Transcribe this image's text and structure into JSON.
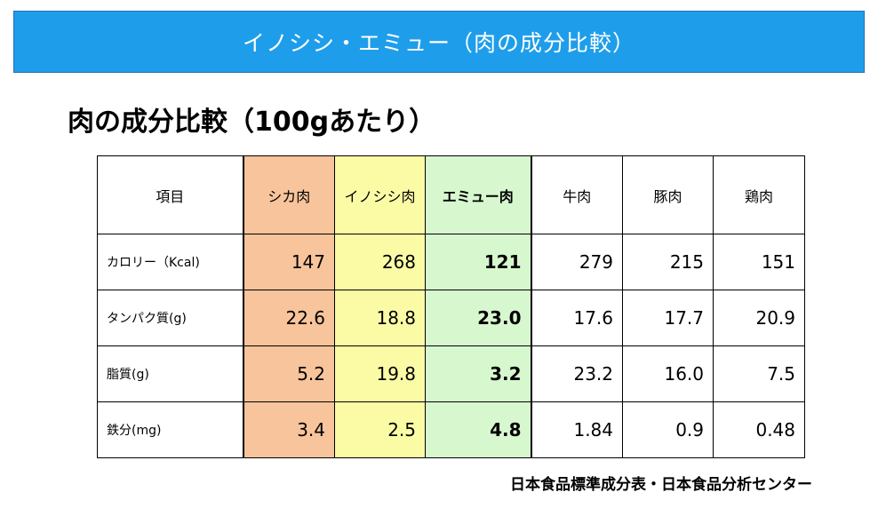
{
  "banner": {
    "title": "イノシシ・エミュー（肉の成分比較）"
  },
  "heading": "肉の成分比較（100gあたり）",
  "table": {
    "columns": [
      "項目",
      "シカ肉",
      "イノシシ肉",
      "エミュー肉",
      "牛肉",
      "豚肉",
      "鶏肉"
    ],
    "rows": [
      {
        "label": "カロリー（Kcal)",
        "values": [
          "147",
          "268",
          "121",
          "279",
          "215",
          "151"
        ]
      },
      {
        "label": "タンパク質(g)",
        "values": [
          "22.6",
          "18.8",
          "23.0",
          "17.6",
          "17.7",
          "20.9"
        ]
      },
      {
        "label": "脂質(g)",
        "values": [
          "5.2",
          "19.8",
          "3.2",
          "23.2",
          "16.0",
          "7.5"
        ]
      },
      {
        "label": "鉄分(mg)",
        "values": [
          "3.4",
          "2.5",
          "4.8",
          "1.84",
          "0.9",
          "0.48"
        ]
      }
    ],
    "highlight_colors": {
      "shika": "#f7c49b",
      "inoshishi": "#fbfba6",
      "emu": "#d7f7cf"
    }
  },
  "source": "日本食品標準成分表・日本食品分析センター"
}
